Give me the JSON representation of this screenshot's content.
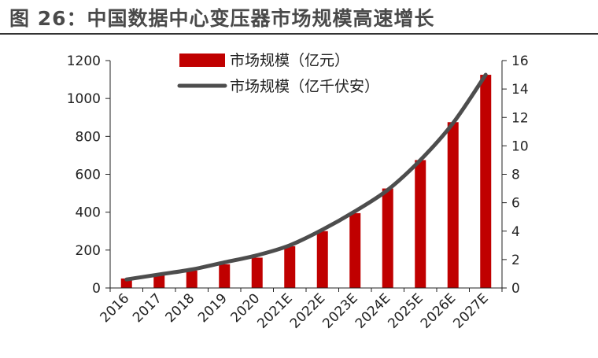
{
  "figure": {
    "title": "图 26：中国数据中心变压器市场规模高速增长"
  },
  "colors": {
    "bar": "#c00000",
    "line": "#4d4d4d",
    "axis": "#222222",
    "rule": "#333333"
  },
  "chart_data": {
    "type": "bar",
    "title": "",
    "categories": [
      "2016",
      "2017",
      "2018",
      "2019",
      "2020",
      "2021E",
      "2022E",
      "2023E",
      "2024E",
      "2025E",
      "2026E",
      "2027E"
    ],
    "series": [
      {
        "name": "市场规模（亿元）",
        "type": "bar",
        "axis": "left",
        "values": [
          50,
          67,
          92,
          125,
          160,
          220,
          300,
          395,
          525,
          675,
          875,
          1125
        ]
      },
      {
        "name": "市场规模（亿千伏安）",
        "type": "line",
        "axis": "right",
        "values": [
          0.6,
          0.95,
          1.3,
          1.8,
          2.3,
          3.0,
          4.1,
          5.4,
          6.9,
          9.0,
          11.6,
          15.0
        ]
      }
    ],
    "y_left": {
      "min": 0,
      "max": 1200,
      "ticks": [
        0,
        200,
        400,
        600,
        800,
        1000,
        1200
      ]
    },
    "y_right": {
      "min": 0,
      "max": 16,
      "ticks": [
        0,
        2,
        4,
        6,
        8,
        10,
        12,
        14,
        16
      ]
    },
    "grid": false,
    "legend": "top-center"
  }
}
